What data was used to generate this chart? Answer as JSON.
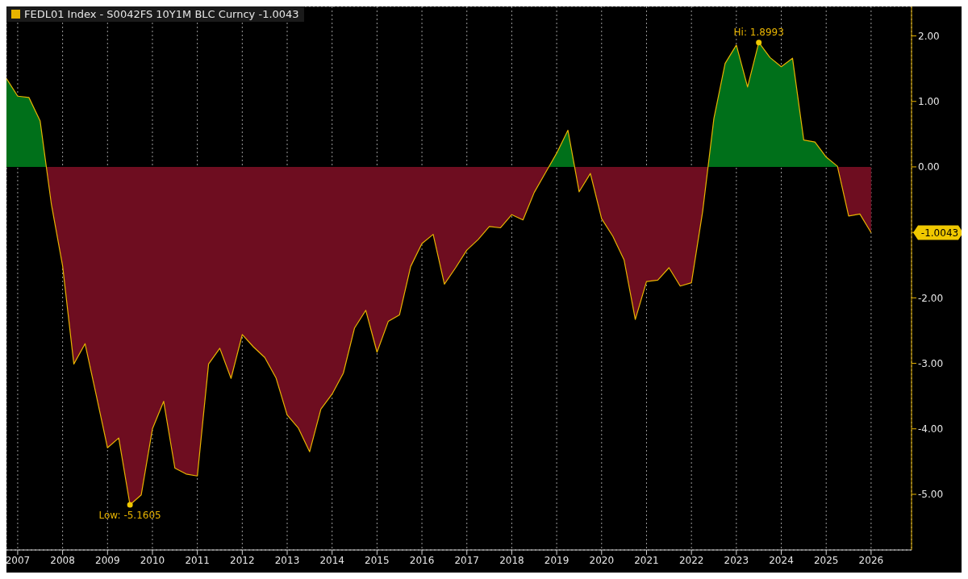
{
  "chart_data": {
    "type": "area",
    "legend": "top left",
    "x": [
      2007.25,
      2007.5,
      2007.75,
      2008,
      2008.25,
      2008.5,
      2008.75,
      2009,
      2009.25,
      2009.5,
      2009.75,
      2010,
      2010.25,
      2010.5,
      2010.75,
      2011,
      2011.25,
      2011.5,
      2011.75,
      2012,
      2012.25,
      2012.5,
      2012.75,
      2013,
      2013.25,
      2013.5,
      2013.75,
      2014,
      2014.25,
      2014.5,
      2014.75,
      2015,
      2015.25,
      2015.5,
      2015.75,
      2016,
      2016.25,
      2016.5,
      2016.75,
      2017,
      2017.25,
      2017.5,
      2017.75,
      2018,
      2018.25,
      2018.5,
      2018.75,
      2019,
      2019.25,
      2019.5,
      2019.75,
      2020,
      2020.25,
      2020.5,
      2020.75,
      2021,
      2021.25,
      2021.5,
      2021.75,
      2022,
      2022.25,
      2022.5,
      2022.75,
      2023,
      2023.25,
      2023.5,
      2023.75,
      2024,
      2024.25,
      2024.5,
      2024.75,
      2025,
      2025.25,
      2025.5,
      2025.75,
      2026,
      2026.25,
      2026.5
    ],
    "series": [
      {
        "name": "FEDL01 Index - S0042FS 10Y1M BLC Curncy -1.0043",
        "color": "#e8b400",
        "colors": [
          "#00701a",
          "#00701a",
          "#00701a",
          "#00701a",
          "#6e0d20",
          "#6e0d20",
          "#6e0d20",
          "#6e0d20",
          "#6e0d20",
          "#6e0d20",
          "#6e0d20",
          "#6e0d20",
          "#6e0d20",
          "#6e0d20",
          "#6e0d20",
          "#6e0d20",
          "#6e0d20",
          "#6e0d20",
          "#6e0d20",
          "#6e0d20",
          "#6e0d20",
          "#6e0d20",
          "#6e0d20",
          "#6e0d20",
          "#6e0d20",
          "#6e0d20",
          "#6e0d20",
          "#6e0d20",
          "#6e0d20",
          "#6e0d20",
          "#6e0d20",
          "#6e0d20",
          "#6e0d20",
          "#6e0d20",
          "#6e0d20",
          "#6e0d20",
          "#6e0d20",
          "#6e0d20",
          "#6e0d20",
          "#6e0d20",
          "#6e0d20",
          "#6e0d20",
          "#6e0d20",
          "#6e0d20",
          "#6e0d20",
          "#6e0d20",
          "#6e0d20",
          "#6e0d20",
          "#6e0d20",
          "#00701a",
          "#00701a",
          "#6e0d20",
          "#6e0d20",
          "#6e0d20",
          "#6e0d20",
          "#6e0d20",
          "#6e0d20",
          "#6e0d20",
          "#6e0d20",
          "#6e0d20",
          "#6e0d20",
          "#6e0d20",
          "#6e0d20",
          "#00701a",
          "#00701a",
          "#00701a",
          "#00701a",
          "#00701a",
          "#00701a",
          "#00701a",
          "#00701a",
          "#00701a",
          "#00701a",
          "#00701a",
          "#00701a",
          "#6e0d20",
          "#6e0d20",
          "#6e0d20"
        ],
        "values": [
          1.35,
          1.08,
          1.06,
          0.7,
          -0.57,
          -1.51,
          -3.01,
          -2.7,
          -3.49,
          -4.29,
          -4.14,
          -5.1605,
          -5.01,
          -4.0,
          -3.58,
          -4.6,
          -4.69,
          -4.72,
          -3.01,
          -2.77,
          -3.23,
          -2.56,
          -2.75,
          -2.91,
          -3.22,
          -3.79,
          -3.99,
          -4.35,
          -3.7,
          -3.47,
          -3.15,
          -2.46,
          -2.19,
          -2.83,
          -2.36,
          -2.26,
          -1.52,
          -1.17,
          -1.03,
          -1.79,
          -1.54,
          -1.27,
          -1.11,
          -0.91,
          -0.93,
          -0.73,
          -0.81,
          -0.39,
          -0.09,
          0.21,
          0.56,
          -0.38,
          -0.1,
          -0.79,
          -1.06,
          -1.42,
          -2.33,
          -1.75,
          -1.73,
          -1.54,
          -1.82,
          -1.77,
          -0.68,
          0.74,
          1.58,
          1.86,
          1.22,
          1.8993,
          1.67,
          1.53,
          1.66,
          0.41,
          0.38,
          0.15,
          0.01,
          -0.75,
          -0.72,
          -1.0043
        ]
      }
    ],
    "xlim": [
      2007.25,
      2027.4
    ],
    "xticks": [
      {
        "value": 2007.5,
        "label": "2007"
      },
      {
        "value": 2008.5,
        "label": "2008"
      },
      {
        "value": 2009.5,
        "label": "2009"
      },
      {
        "value": 2010.5,
        "label": "2010"
      },
      {
        "value": 2011.5,
        "label": "2011"
      },
      {
        "value": 2012.5,
        "label": "2012"
      },
      {
        "value": 2013.5,
        "label": "2013"
      },
      {
        "value": 2014.5,
        "label": "2014"
      },
      {
        "value": 2015.5,
        "label": "2015"
      },
      {
        "value": 2016.5,
        "label": "2016"
      },
      {
        "value": 2017.5,
        "label": "2017"
      },
      {
        "value": 2018.5,
        "label": "2018"
      },
      {
        "value": 2019.5,
        "label": "2019"
      },
      {
        "value": 2020.5,
        "label": "2020"
      },
      {
        "value": 2021.5,
        "label": "2021"
      },
      {
        "value": 2022.5,
        "label": "2022"
      },
      {
        "value": 2023.5,
        "label": "2023"
      },
      {
        "value": 2024.5,
        "label": "2024"
      },
      {
        "value": 2025.5,
        "label": "2025"
      },
      {
        "value": 2026.5,
        "label": "2026"
      }
    ],
    "ylim": [
      -5.85,
      2.45
    ],
    "yticks": [
      {
        "value": 2,
        "label": "2.00"
      },
      {
        "value": 1,
        "label": "1.00"
      },
      {
        "value": 0,
        "label": "0.00"
      },
      {
        "value": -1,
        "label": null
      },
      {
        "value": -2,
        "label": "-2.00"
      },
      {
        "value": -3,
        "label": "-3.00"
      },
      {
        "value": -4,
        "label": "-4.00"
      },
      {
        "value": -5,
        "label": "-5.00"
      }
    ],
    "grid": true,
    "annotations": [
      {
        "text": "Low: -5.1605",
        "x": 2010,
        "y": -5.1605
      },
      {
        "text": "Hi: 1.8993",
        "x": 2024,
        "y": 1.8993
      },
      "-1.0043"
    ]
  }
}
